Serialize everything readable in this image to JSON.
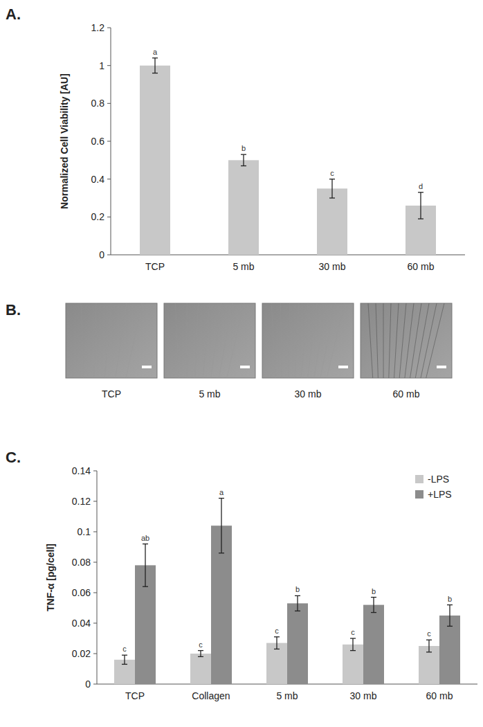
{
  "chart_data": [
    {
      "type": "bar",
      "title": "A.",
      "y_label": "Normalized Cell Viability [AU]",
      "categories": [
        "TCP",
        "5 mb",
        "30 mb",
        "60 mb"
      ],
      "values": [
        1.0,
        0.5,
        0.35,
        0.26
      ],
      "errors": [
        0.04,
        0.03,
        0.05,
        0.07
      ],
      "annotations": [
        "a",
        "b",
        "c",
        "d"
      ],
      "color": "#c8c8c8",
      "ylim": [
        0,
        1.2
      ],
      "yticks": [
        0,
        0.2,
        0.4,
        0.6,
        0.8,
        1,
        1.2
      ],
      "grid": false
    },
    {
      "type": "bar",
      "title": "C.",
      "y_label": "TNF-α [pg/cell]",
      "categories": [
        "TCP",
        "Collagen",
        "5 mb",
        "30 mb",
        "60 mb"
      ],
      "series": [
        {
          "name": "-LPS",
          "color": "#c8c8c8",
          "values": [
            0.016,
            0.02,
            0.027,
            0.026,
            0.025
          ],
          "errors": [
            0.003,
            0.002,
            0.004,
            0.004,
            0.004
          ],
          "annotations": [
            "c",
            "c",
            "c",
            "c",
            "c"
          ]
        },
        {
          "name": "+LPS",
          "color": "#8c8c8c",
          "values": [
            0.078,
            0.104,
            0.053,
            0.052,
            0.045
          ],
          "errors": [
            0.014,
            0.018,
            0.005,
            0.005,
            0.007
          ],
          "annotations": [
            "ab",
            "a",
            "b",
            "b",
            "b"
          ]
        }
      ],
      "ylim": [
        0,
        0.14
      ],
      "yticks": [
        0,
        0.02,
        0.04,
        0.06,
        0.08,
        0.1,
        0.12,
        0.14
      ],
      "grid": false,
      "legend": "top-right"
    }
  ],
  "figure_b": {
    "label": "B.",
    "captions": [
      "TCP",
      "5 mb",
      "30 mb",
      "60 mb"
    ]
  }
}
